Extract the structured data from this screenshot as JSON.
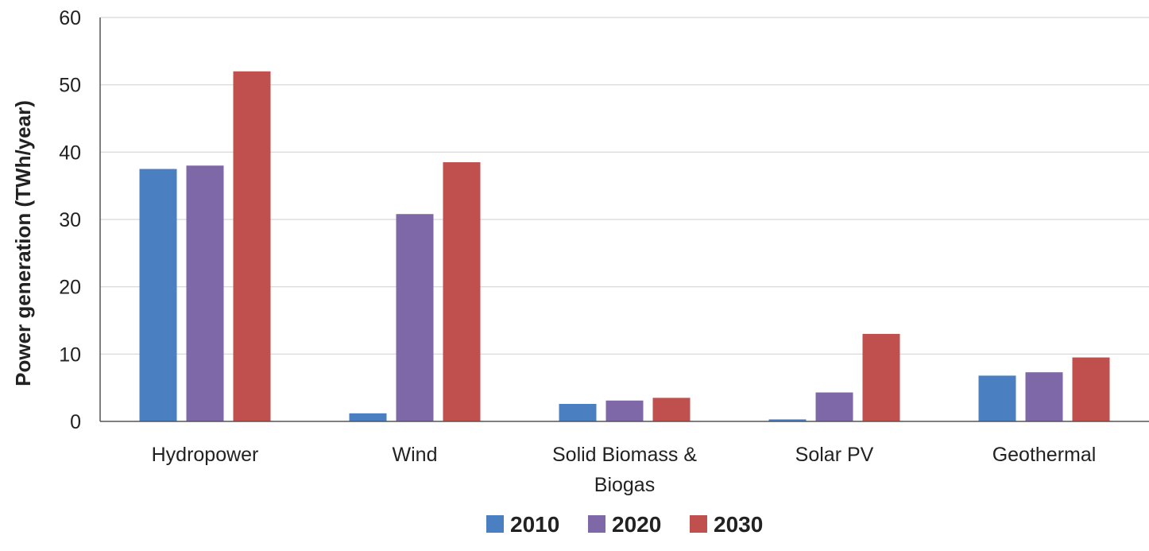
{
  "chart_data": {
    "type": "bar",
    "title": "",
    "xlabel": "",
    "ylabel": "Power generation (TWh/year)",
    "ylim": [
      0,
      60
    ],
    "yticks": [
      0,
      10,
      20,
      30,
      40,
      50,
      60
    ],
    "grid": true,
    "legend_position": "bottom",
    "categories": [
      "Hydropower",
      "Wind",
      "Solid Biomass & Biogas",
      "Solar PV",
      "Geothermal"
    ],
    "category_lines": [
      [
        "Hydropower"
      ],
      [
        "Wind"
      ],
      [
        "Solid Biomass &",
        "Biogas"
      ],
      [
        "Solar PV"
      ],
      [
        "Geothermal"
      ]
    ],
    "series": [
      {
        "name": "2010",
        "color": "#4a7fc1",
        "values": [
          37.5,
          1.2,
          2.6,
          0.3,
          6.8
        ]
      },
      {
        "name": "2020",
        "color": "#7f68a8",
        "values": [
          38.0,
          30.8,
          3.1,
          4.3,
          7.3
        ]
      },
      {
        "name": "2030",
        "color": "#c0504d",
        "values": [
          52.0,
          38.5,
          3.5,
          13.0,
          9.5
        ]
      }
    ]
  }
}
